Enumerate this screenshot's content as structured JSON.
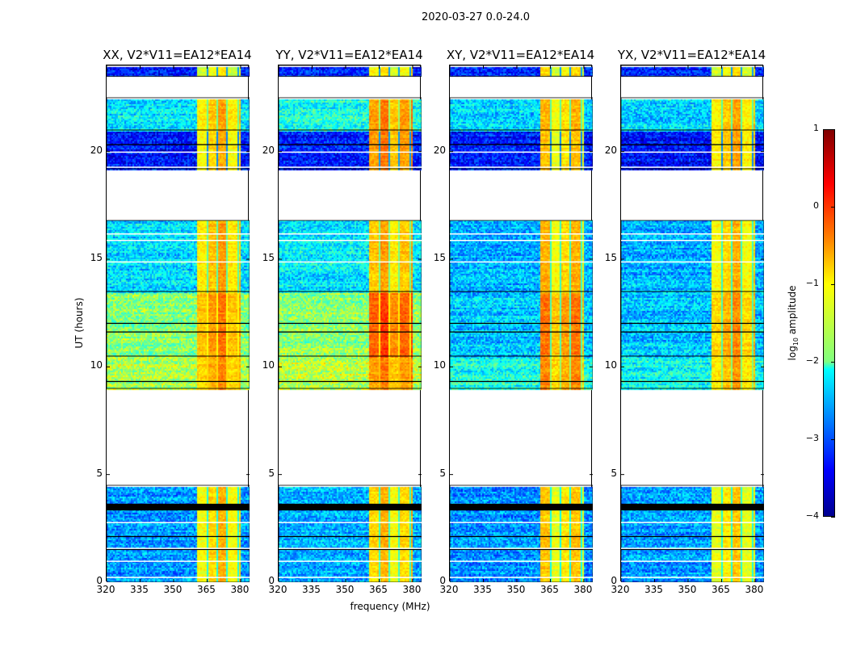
{
  "chart_data": {
    "type": "heatmap",
    "title": "2020-03-27 0.0-24.0",
    "ylabel": "UT (hours)",
    "xlabel": "frequency (MHz)",
    "xlim": [
      320,
      384
    ],
    "ylim": [
      0,
      24
    ],
    "xticks": [
      "320",
      "335",
      "350",
      "365",
      "380"
    ],
    "xtick_values": [
      320,
      335,
      350,
      365,
      380
    ],
    "yticks": [
      "0",
      "5",
      "10",
      "15",
      "20"
    ],
    "ytick_values": [
      0,
      5,
      10,
      15,
      20
    ],
    "colorbar": {
      "label": "log10 amplitude",
      "label_main": "log",
      "label_sub": "10",
      "label_rest": " amplitude",
      "range": [
        -4,
        1
      ],
      "ticks": [
        "1",
        "0",
        "−1",
        "−2",
        "−3",
        "−4"
      ],
      "tick_values": [
        1,
        0,
        -1,
        -2,
        -3,
        -4
      ],
      "colormap": "jet"
    },
    "bright_band_mhz": [
      360,
      380
    ],
    "panels": [
      {
        "title": "XX, V2*V11=EA12*EA14",
        "bands": [
          {
            "t": [
              0,
              4.5
            ],
            "bg": -2.6,
            "hi": -0.7
          },
          {
            "t": [
              9.0,
              10.5
            ],
            "bg": -1.3,
            "hi": -0.5
          },
          {
            "t": [
              10.5,
              13.5
            ],
            "bg": -1.5,
            "hi": -0.4
          },
          {
            "t": [
              13.5,
              16.8
            ],
            "bg": -2.3,
            "hi": -0.6
          },
          {
            "t": [
              19.2,
              21.0
            ],
            "bg": -3.3,
            "hi": -0.7
          },
          {
            "t": [
              21.0,
              22.5
            ],
            "bg": -2.2,
            "hi": -0.6
          },
          {
            "t": [
              23.5,
              24.0
            ],
            "bg": -3.2,
            "hi": -0.9
          }
        ]
      },
      {
        "title": "YY, V2*V11=EA12*EA14",
        "bands": [
          {
            "t": [
              0,
              4.5
            ],
            "bg": -2.5,
            "hi": -0.7
          },
          {
            "t": [
              9.0,
              10.5
            ],
            "bg": -1.2,
            "hi": -0.4
          },
          {
            "t": [
              10.5,
              13.5
            ],
            "bg": -1.4,
            "hi": -0.1
          },
          {
            "t": [
              13.5,
              16.8
            ],
            "bg": -2.2,
            "hi": -0.6
          },
          {
            "t": [
              19.2,
              21.0
            ],
            "bg": -3.2,
            "hi": -0.4
          },
          {
            "t": [
              21.0,
              22.5
            ],
            "bg": -2.0,
            "hi": -0.4
          },
          {
            "t": [
              23.5,
              24.0
            ],
            "bg": -3.2,
            "hi": -0.9
          }
        ]
      },
      {
        "title": "XY, V2*V11=EA12*EA14",
        "bands": [
          {
            "t": [
              0,
              4.5
            ],
            "bg": -2.7,
            "hi": -0.8
          },
          {
            "t": [
              9.0,
              10.5
            ],
            "bg": -2.0,
            "hi": -0.5
          },
          {
            "t": [
              10.5,
              13.5
            ],
            "bg": -2.4,
            "hi": -0.4
          },
          {
            "t": [
              13.5,
              16.8
            ],
            "bg": -2.5,
            "hi": -0.7
          },
          {
            "t": [
              19.2,
              21.0
            ],
            "bg": -3.3,
            "hi": -0.8
          },
          {
            "t": [
              21.0,
              22.5
            ],
            "bg": -2.3,
            "hi": -0.7
          },
          {
            "t": [
              23.5,
              24.0
            ],
            "bg": -3.2,
            "hi": -0.9
          }
        ]
      },
      {
        "title": "YX, V2*V11=EA12*EA14",
        "bands": [
          {
            "t": [
              0,
              4.5
            ],
            "bg": -2.6,
            "hi": -0.8
          },
          {
            "t": [
              9.0,
              10.5
            ],
            "bg": -2.1,
            "hi": -0.6
          },
          {
            "t": [
              10.5,
              13.5
            ],
            "bg": -2.4,
            "hi": -0.5
          },
          {
            "t": [
              13.5,
              16.8
            ],
            "bg": -2.5,
            "hi": -0.7
          },
          {
            "t": [
              19.2,
              21.0
            ],
            "bg": -3.3,
            "hi": -0.6
          },
          {
            "t": [
              21.0,
              22.5
            ],
            "bg": -2.3,
            "hi": -0.6
          },
          {
            "t": [
              23.5,
              24.0
            ],
            "bg": -3.2,
            "hi": -0.9
          }
        ]
      }
    ],
    "flagged_lines_hours": [
      3.4,
      3.5,
      3.6,
      2.1,
      1.5,
      9.3,
      11.6,
      12.0,
      20.3
    ],
    "white_lines_hours": [
      0.25,
      1.0,
      1.6,
      2.8,
      14.9,
      15.9,
      16.2,
      19.3,
      20.0
    ]
  }
}
